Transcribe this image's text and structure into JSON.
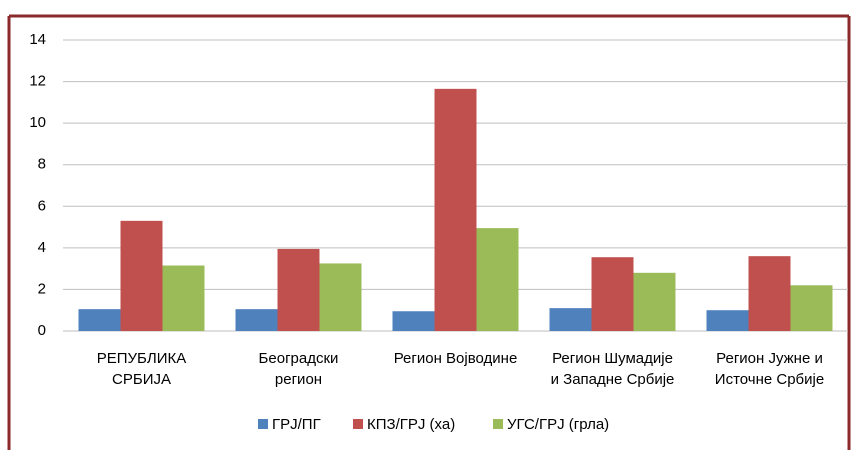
{
  "chart_data": {
    "type": "bar",
    "categories": [
      "РЕПУБЛИКА\nСРБИЈА",
      "Београдски\nрегион",
      "Регион Војводине",
      "Регион Шумадије\nи Западне Србије",
      "Регион Јужне и\nИсточне Србије"
    ],
    "series": [
      {
        "name": "ГРЈ/ПГ",
        "color": "#4f81bd",
        "values": [
          1.05,
          1.05,
          0.95,
          1.1,
          1.0
        ]
      },
      {
        "name": "КПЗ/ГРЈ (ха)",
        "color": "#c0504d",
        "values": [
          5.3,
          3.95,
          11.65,
          3.55,
          3.6
        ]
      },
      {
        "name": "УГС/ГРЈ (грла)",
        "color": "#9bbb59",
        "values": [
          3.15,
          3.25,
          4.95,
          2.8,
          2.2
        ]
      }
    ],
    "ylim": [
      0,
      14
    ],
    "yticks": [
      0,
      2,
      4,
      6,
      8,
      10,
      12,
      14
    ],
    "grid": true,
    "legend": "bottom"
  }
}
